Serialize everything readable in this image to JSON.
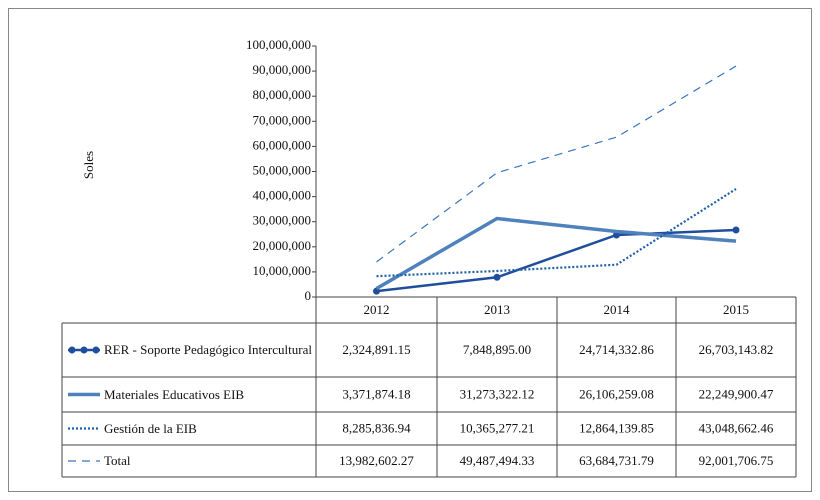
{
  "chart_data": {
    "type": "line",
    "y_label": "Soles",
    "categories": [
      "2012",
      "2013",
      "2014",
      "2015"
    ],
    "ylim": [
      0,
      100000000
    ],
    "yticks": [
      0,
      {
        "value": 10000000,
        "label": "10,000,000"
      },
      {
        "value": 20000000,
        "label": "20,000,000"
      },
      {
        "value": 30000000,
        "label": "30,000,000"
      },
      {
        "value": 40000000,
        "label": "40,000,000"
      },
      {
        "value": 50000000,
        "label": "50,000,000"
      },
      {
        "value": 60000000,
        "label": "60,000,000"
      },
      {
        "value": 70000000,
        "label": "70,000,000"
      },
      {
        "value": 80000000,
        "label": "80,000,000"
      },
      {
        "value": 90000000,
        "label": "90,000,000"
      },
      {
        "value": 100000000,
        "label": "100,000,000"
      }
    ],
    "series": [
      {
        "name": "RER - Soporte Pedagógico Intercultural",
        "color": "#1f4e9c",
        "line_style": "solid",
        "line_width": 2.5,
        "markers": true,
        "values": [
          2324891.15,
          7848895.0,
          24714332.86,
          26703143.82
        ],
        "value_labels": [
          "2,324,891.15",
          "7,848,895.00",
          "24,714,332.86",
          "26,703,143.82"
        ]
      },
      {
        "name": "Materiales Educativos EIB",
        "color": "#4f81bd",
        "line_style": "solid",
        "line_width": 3.5,
        "markers": false,
        "values": [
          3371874.18,
          31273322.12,
          26106259.08,
          22249900.47
        ],
        "value_labels": [
          "3,371,874.18",
          "31,273,322.12",
          "26,106,259.08",
          "22,249,900.47"
        ]
      },
      {
        "name": "Gestión de la EIB",
        "color": "#1f5fa8",
        "line_style": "dotted",
        "line_width": 2.2,
        "markers": false,
        "values": [
          8285836.94,
          10365277.21,
          12864139.85,
          43048662.46
        ],
        "value_labels": [
          "8,285,836.94",
          "10,365,277.21",
          "12,864,139.85",
          "43,048,662.46"
        ]
      },
      {
        "name": "Total",
        "color": "#3a75bf",
        "line_style": "dashed",
        "line_width": 1.2,
        "markers": false,
        "values": [
          13982602.27,
          49487494.33,
          63684731.79,
          92001706.75
        ],
        "value_labels": [
          "13,982,602.27",
          "49,487,494.33",
          "63,684,731.79",
          "92,001,706.75"
        ]
      }
    ]
  }
}
